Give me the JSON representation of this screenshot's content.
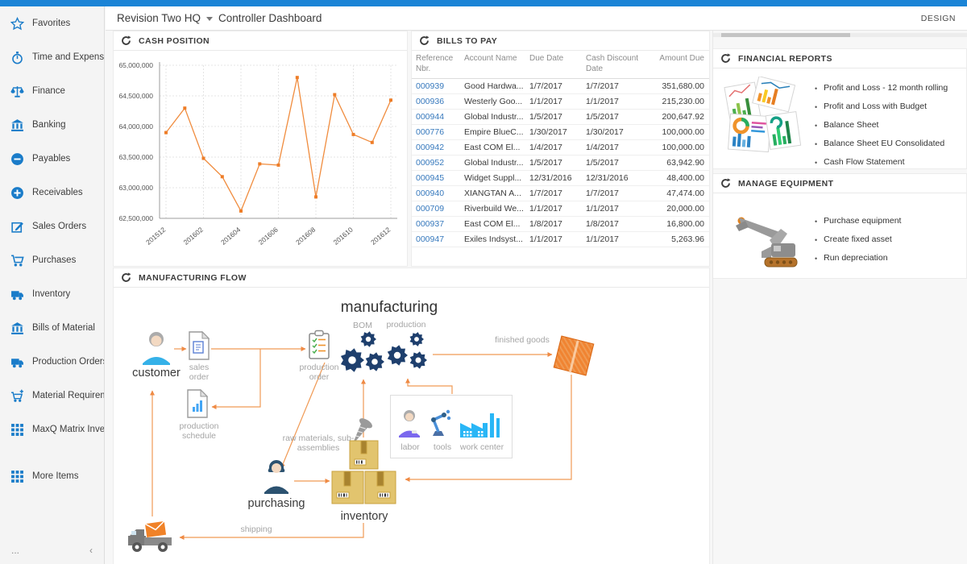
{
  "header": {
    "company": "Revision Two HQ",
    "page": "Controller Dashboard",
    "design": "DESIGN"
  },
  "sidebar": {
    "items": [
      {
        "label": "Favorites",
        "icon": "star"
      },
      {
        "label": "Time and Expenses",
        "icon": "stopwatch"
      },
      {
        "label": "Finance",
        "icon": "scales"
      },
      {
        "label": "Banking",
        "icon": "bank"
      },
      {
        "label": "Payables",
        "icon": "minus-circle"
      },
      {
        "label": "Receivables",
        "icon": "plus-circle"
      },
      {
        "label": "Sales Orders",
        "icon": "edit"
      },
      {
        "label": "Purchases",
        "icon": "cart"
      },
      {
        "label": "Inventory",
        "icon": "truck"
      },
      {
        "label": "Bills of Material",
        "icon": "bank"
      },
      {
        "label": "Production Orders",
        "icon": "truck"
      },
      {
        "label": "Material Requirem...",
        "icon": "cart-plus"
      },
      {
        "label": "MaxQ Matrix Invent...",
        "icon": "grid"
      },
      {
        "label": "More Items",
        "icon": "grid"
      }
    ],
    "more": "...",
    "collapse": "‹"
  },
  "cash_position": {
    "title": "CASH POSITION"
  },
  "bills_to_pay": {
    "title": "BILLS TO PAY",
    "columns": [
      "Reference Nbr.",
      "Account Name",
      "Due Date",
      "Cash Discount Date",
      "Amount Due"
    ],
    "rows": [
      [
        "000939",
        "Good Hardwa...",
        "1/7/2017",
        "1/7/2017",
        "351,680.00"
      ],
      [
        "000936",
        "Westerly Goo...",
        "1/1/2017",
        "1/1/2017",
        "215,230.00"
      ],
      [
        "000944",
        "Global Industr...",
        "1/5/2017",
        "1/5/2017",
        "200,647.92"
      ],
      [
        "000776",
        "Empire BlueC...",
        "1/30/2017",
        "1/30/2017",
        "100,000.00"
      ],
      [
        "000942",
        "East COM El...",
        "1/4/2017",
        "1/4/2017",
        "100,000.00"
      ],
      [
        "000952",
        "Global Industr...",
        "1/5/2017",
        "1/5/2017",
        "63,942.90"
      ],
      [
        "000945",
        "Widget Suppl...",
        "12/31/2016",
        "12/31/2016",
        "48,400.00"
      ],
      [
        "000940",
        "XIANGTAN A...",
        "1/7/2017",
        "1/7/2017",
        "47,474.00"
      ],
      [
        "000709",
        "Riverbuild We...",
        "1/1/2017",
        "1/1/2017",
        "20,000.00"
      ],
      [
        "000937",
        "East COM El...",
        "1/8/2017",
        "1/8/2017",
        "16,800.00"
      ],
      [
        "000947",
        "Exiles Indsyst...",
        "1/1/2017",
        "1/1/2017",
        "5,263.96"
      ]
    ]
  },
  "financial_reports": {
    "title": "FINANCIAL REPORTS",
    "links": [
      "Profit and Loss - 12 month rolling",
      "Profit and Loss with Budget",
      "Balance Sheet",
      "Balance Sheet EU Consolidated",
      "Cash Flow Statement"
    ]
  },
  "manage_equipment": {
    "title": "MANAGE EQUIPMENT",
    "links": [
      "Purchase equipment",
      "Create fixed asset",
      "Run depreciation"
    ]
  },
  "manufacturing_flow": {
    "title": "MANUFACTURING FLOW",
    "labels": {
      "customer": "customer",
      "sales_order": "sales order",
      "production_schedule": "production schedule",
      "production_order": "production order",
      "manufacturing": "manufacturing",
      "bom": "BOM",
      "production": "production",
      "finished_goods": "finished goods",
      "labor": "labor",
      "tools": "tools",
      "work_center": "work center",
      "raw_materials": "raw materials, sub-assemblies",
      "purchasing": "purchasing",
      "inventory": "inventory",
      "shipping": "shipping"
    }
  },
  "chart_data": {
    "type": "line",
    "title": "CASH POSITION",
    "x": [
      "201512",
      "201601",
      "201602",
      "201603",
      "201604",
      "201605",
      "201606",
      "201607",
      "201608",
      "201609",
      "201610",
      "201611",
      "201612"
    ],
    "x_tick_labels": [
      "201512",
      "201602",
      "201604",
      "201606",
      "201608",
      "201610",
      "201612"
    ],
    "values": [
      63900000,
      64300000,
      63480000,
      63180000,
      62620000,
      63390000,
      63370000,
      64800000,
      62850000,
      64520000,
      63870000,
      63740000,
      64430000
    ],
    "xlabel": "",
    "ylabel": "",
    "ylim": [
      62500000,
      65000000
    ],
    "y_tick_step": 500000,
    "grid": true,
    "legend": "none"
  },
  "colors": {
    "top_bar": "#1b84d6",
    "icon_blue": "#1a7cc9",
    "chart_line": "#f08c3e",
    "chart_marker": "#ee7d27",
    "arrow_orange": "#f09a55",
    "link_blue": "#3779bd",
    "gear_navy": "#1e3f6d"
  }
}
